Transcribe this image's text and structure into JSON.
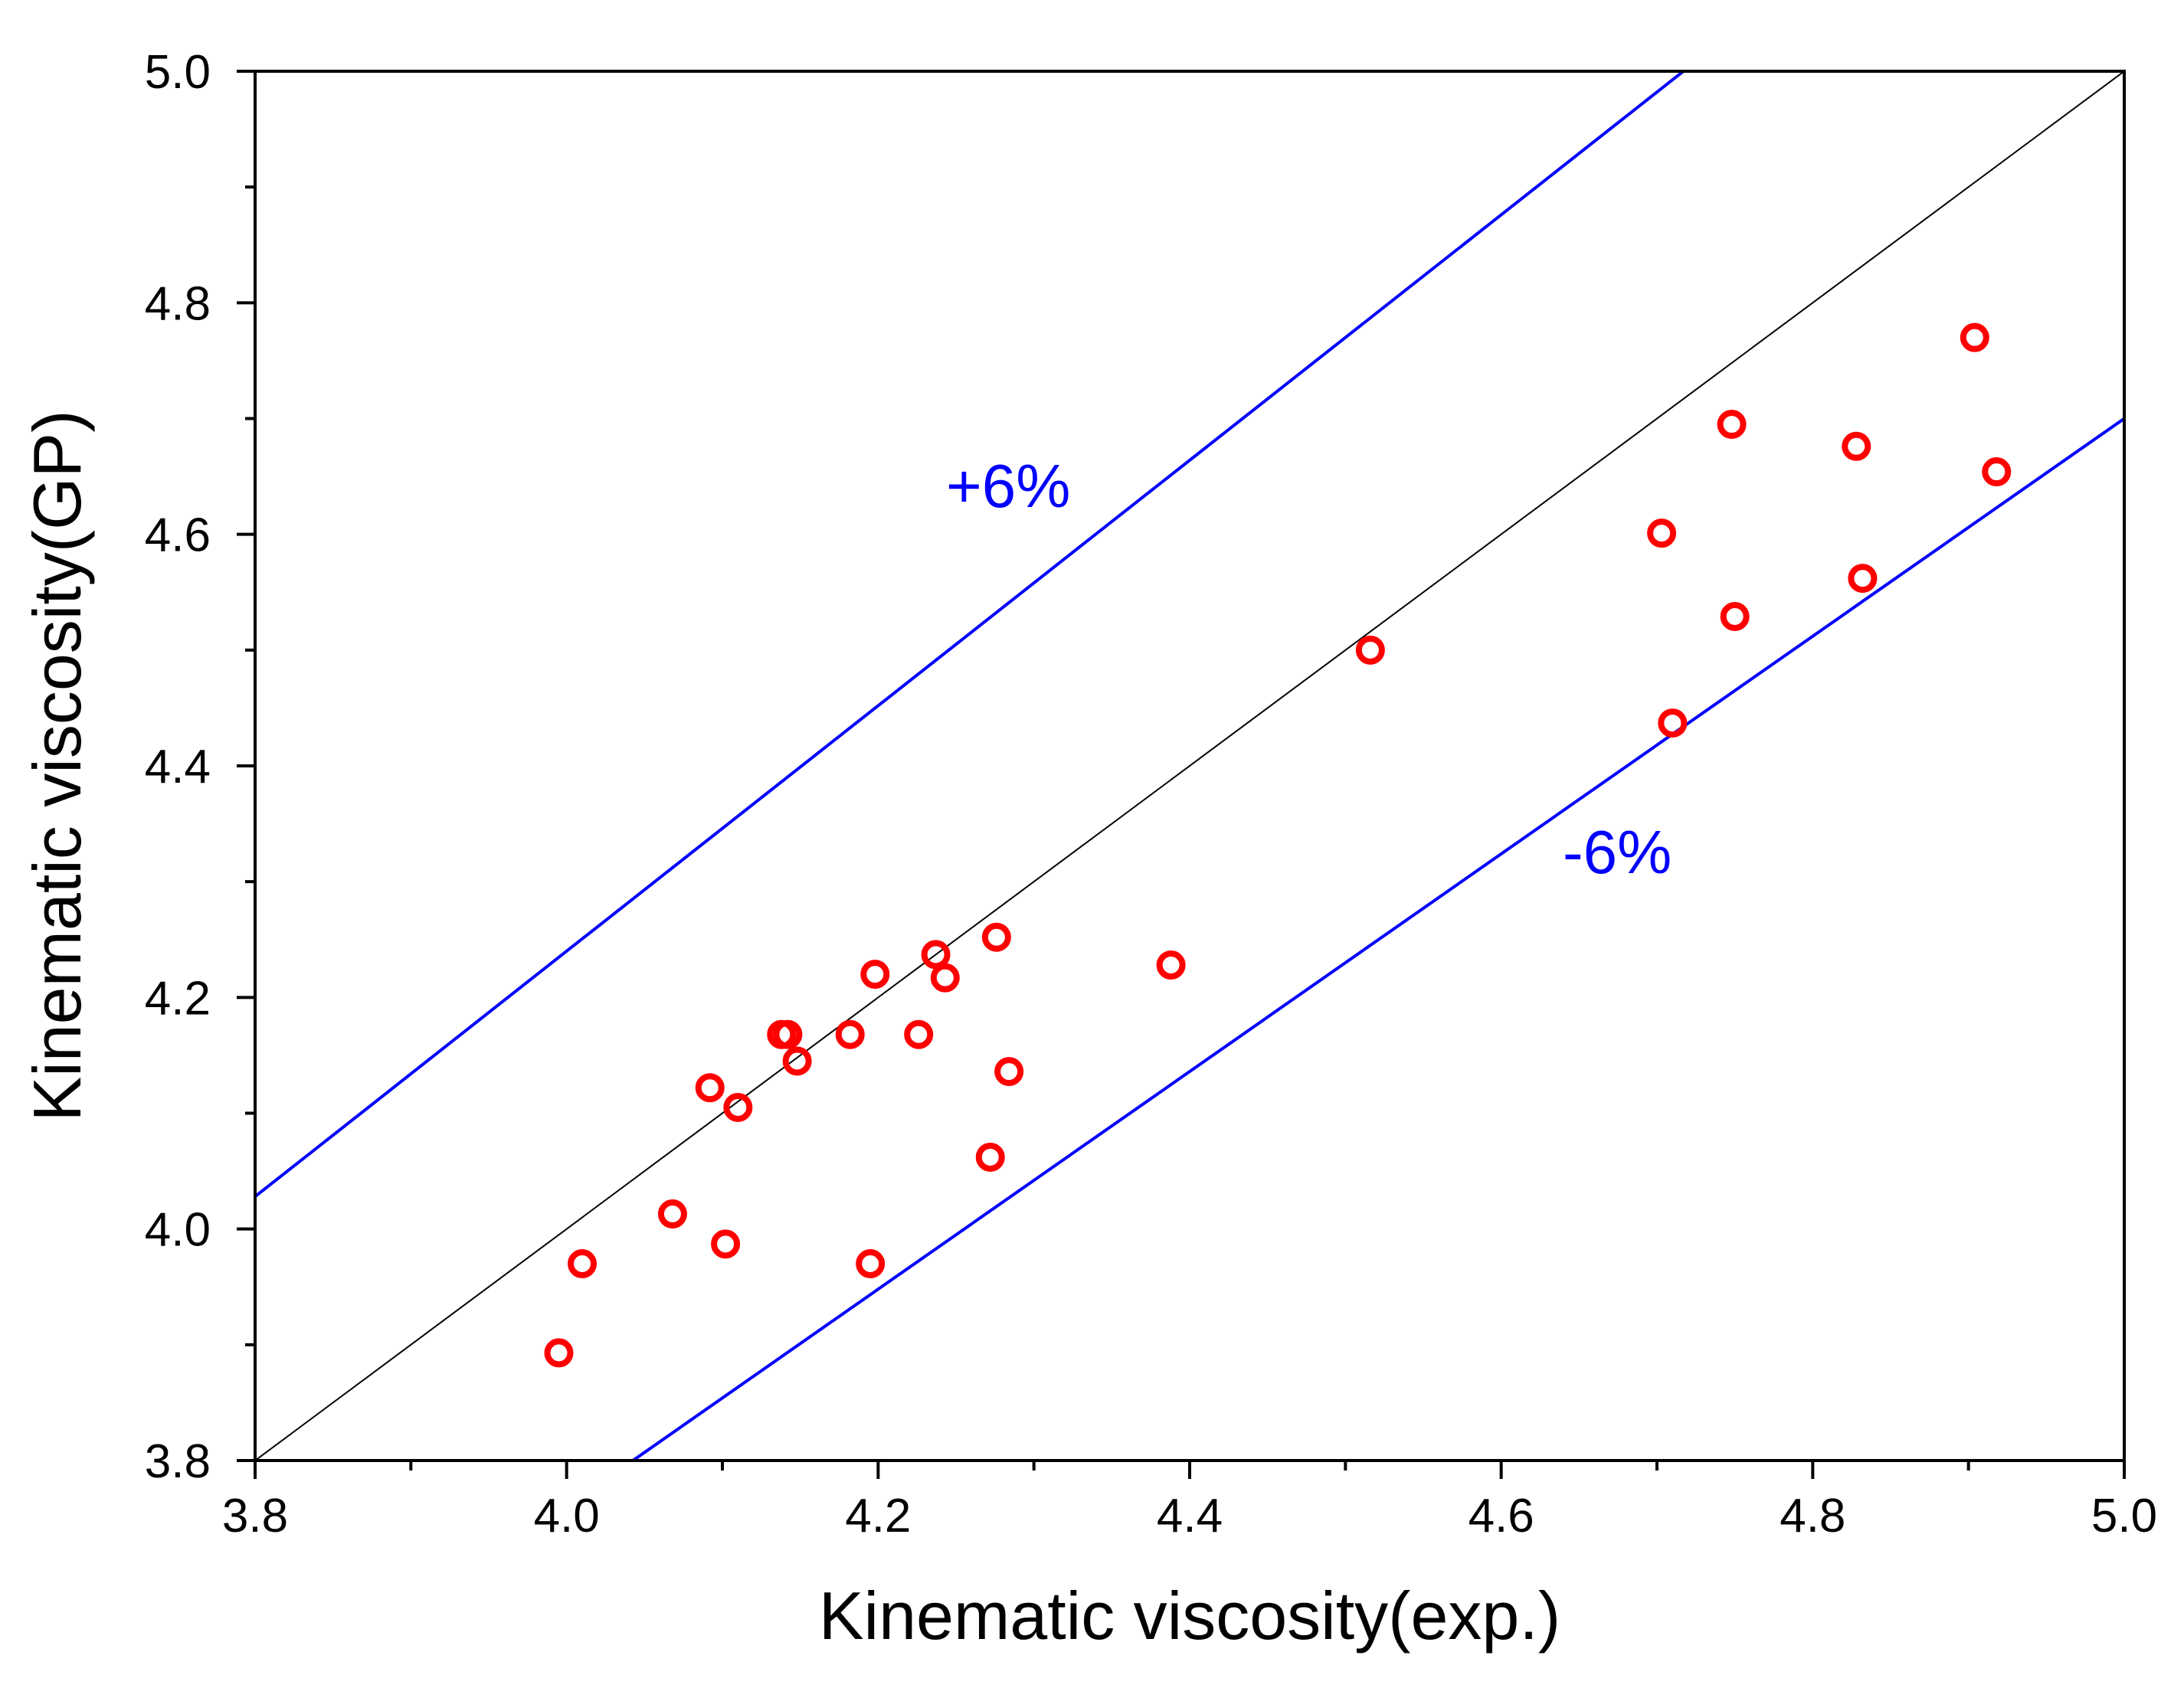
{
  "chart_data": {
    "type": "scatter",
    "title": "",
    "xlabel": "Kinematic viscosity(exp.)",
    "ylabel": "Kinematic viscosity(GP)",
    "xlim": [
      3.8,
      5.0
    ],
    "ylim": [
      3.8,
      5.0
    ],
    "x_ticks": [
      "3.8",
      "4.0",
      "4.2",
      "4.4",
      "4.6",
      "4.8",
      "5.0"
    ],
    "y_ticks": [
      "3.8",
      "4.0",
      "4.2",
      "4.4",
      "4.6",
      "4.8",
      "5.0"
    ],
    "grid": false,
    "marker": "open-circle",
    "marker_color": "#ff0000",
    "band_color": "#0000ff",
    "reference_color": "#000000",
    "reference_line": {
      "slope": 1.0
    },
    "bands": [
      {
        "label": "+6%",
        "factor": 1.06
      },
      {
        "label": "-6%",
        "factor": 0.94
      }
    ],
    "points": [
      {
        "x": 3.995,
        "y": 3.893
      },
      {
        "x": 4.01,
        "y": 3.97
      },
      {
        "x": 4.068,
        "y": 4.013
      },
      {
        "x": 4.092,
        "y": 4.122
      },
      {
        "x": 4.102,
        "y": 3.987
      },
      {
        "x": 4.11,
        "y": 4.105
      },
      {
        "x": 4.138,
        "y": 4.168
      },
      {
        "x": 4.142,
        "y": 4.168
      },
      {
        "x": 4.148,
        "y": 4.145
      },
      {
        "x": 4.182,
        "y": 4.168
      },
      {
        "x": 4.195,
        "y": 3.97
      },
      {
        "x": 4.198,
        "y": 4.22
      },
      {
        "x": 4.226,
        "y": 4.168
      },
      {
        "x": 4.237,
        "y": 4.237
      },
      {
        "x": 4.243,
        "y": 4.217
      },
      {
        "x": 4.272,
        "y": 4.062
      },
      {
        "x": 4.276,
        "y": 4.252
      },
      {
        "x": 4.284,
        "y": 4.136
      },
      {
        "x": 4.388,
        "y": 4.228
      },
      {
        "x": 4.516,
        "y": 4.5
      },
      {
        "x": 4.703,
        "y": 4.601
      },
      {
        "x": 4.71,
        "y": 4.437
      },
      {
        "x": 4.748,
        "y": 4.695
      },
      {
        "x": 4.75,
        "y": 4.529
      },
      {
        "x": 4.828,
        "y": 4.676
      },
      {
        "x": 4.832,
        "y": 4.562
      },
      {
        "x": 4.904,
        "y": 4.77
      },
      {
        "x": 4.918,
        "y": 4.654
      }
    ]
  }
}
